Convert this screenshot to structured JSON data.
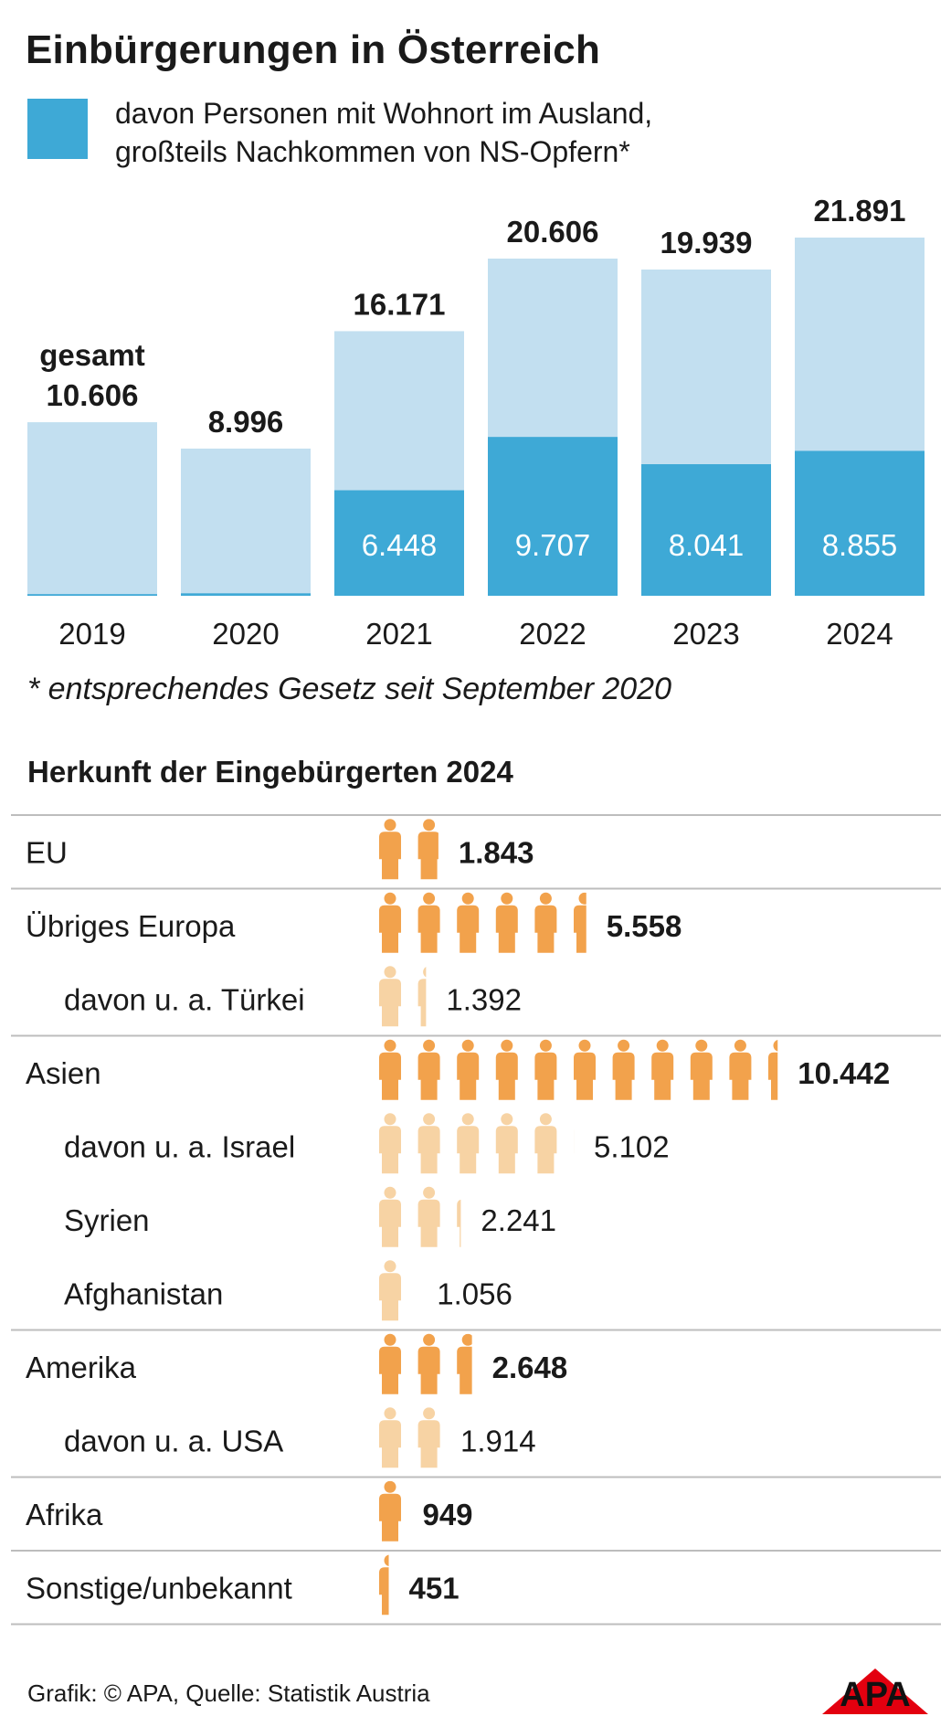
{
  "title": "Einbürgerungen in Österreich",
  "legend": {
    "line1": "davon Personen mit Wohnort im Ausland,",
    "line2": "großteils Nachkommen von NS-Opfern*"
  },
  "footnote": "*  entsprechendes Gesetz seit September 2020",
  "section_title": "Herkunft der Eingebürgerten 2024",
  "source": "Grafik: © APA, Quelle: Statistik Austria",
  "logo_text": "APA",
  "colors": {
    "total": "#c2dff0",
    "abroad": "#3ea9d6",
    "person_main": "#f2a24c",
    "person_sub": "#f7d3a4",
    "divider": "#bdbdbd"
  },
  "chart_data": [
    {
      "type": "bar",
      "title": "Einbürgerungen in Österreich",
      "categories": [
        "2019",
        "2020",
        "2021",
        "2022",
        "2023",
        "2024"
      ],
      "total_prefix": "gesamt",
      "series": [
        {
          "name": "gesamt",
          "values": [
            10606,
            8996,
            16171,
            20606,
            19939,
            21891
          ],
          "labels": [
            "10.606",
            "8.996",
            "16.171",
            "20.606",
            "19.939",
            "21.891"
          ]
        },
        {
          "name": "davon Personen mit Wohnort im Ausland, großteils Nachkommen von NS-Opfern*",
          "values": [
            100,
            150,
            6448,
            9707,
            8041,
            8855
          ],
          "labels": [
            "",
            "",
            "6.448",
            "9.707",
            "8.041",
            "8.855"
          ]
        }
      ],
      "ylim": [
        0,
        21891
      ]
    },
    {
      "type": "pictogram",
      "title": "Herkunft der Eingebürgerten 2024",
      "unit_per_icon": 1000,
      "rows": [
        {
          "label": "EU",
          "value": 1843,
          "value_label": "1.843",
          "level": "main"
        },
        {
          "label": "Übriges Europa",
          "value": 5558,
          "value_label": "5.558",
          "level": "main"
        },
        {
          "label": "davon u. a. Türkei",
          "value": 1392,
          "value_label": "1.392",
          "level": "sub"
        },
        {
          "label": "Asien",
          "value": 10442,
          "value_label": "10.442",
          "level": "main"
        },
        {
          "label": "davon u. a. Israel",
          "value": 5102,
          "value_label": "5.102",
          "level": "sub"
        },
        {
          "label": "Syrien",
          "value": 2241,
          "value_label": "2.241",
          "level": "sub"
        },
        {
          "label": "Afghanistan",
          "value": 1056,
          "value_label": "1.056",
          "level": "sub"
        },
        {
          "label": "Amerika",
          "value": 2648,
          "value_label": "2.648",
          "level": "main"
        },
        {
          "label": "davon u. a. USA",
          "value": 1914,
          "value_label": "1.914",
          "level": "sub"
        },
        {
          "label": "Afrika",
          "value": 949,
          "value_label": "949",
          "level": "main"
        },
        {
          "label": "Sonstige/unbekannt",
          "value": 451,
          "value_label": "451",
          "level": "main"
        }
      ]
    }
  ]
}
